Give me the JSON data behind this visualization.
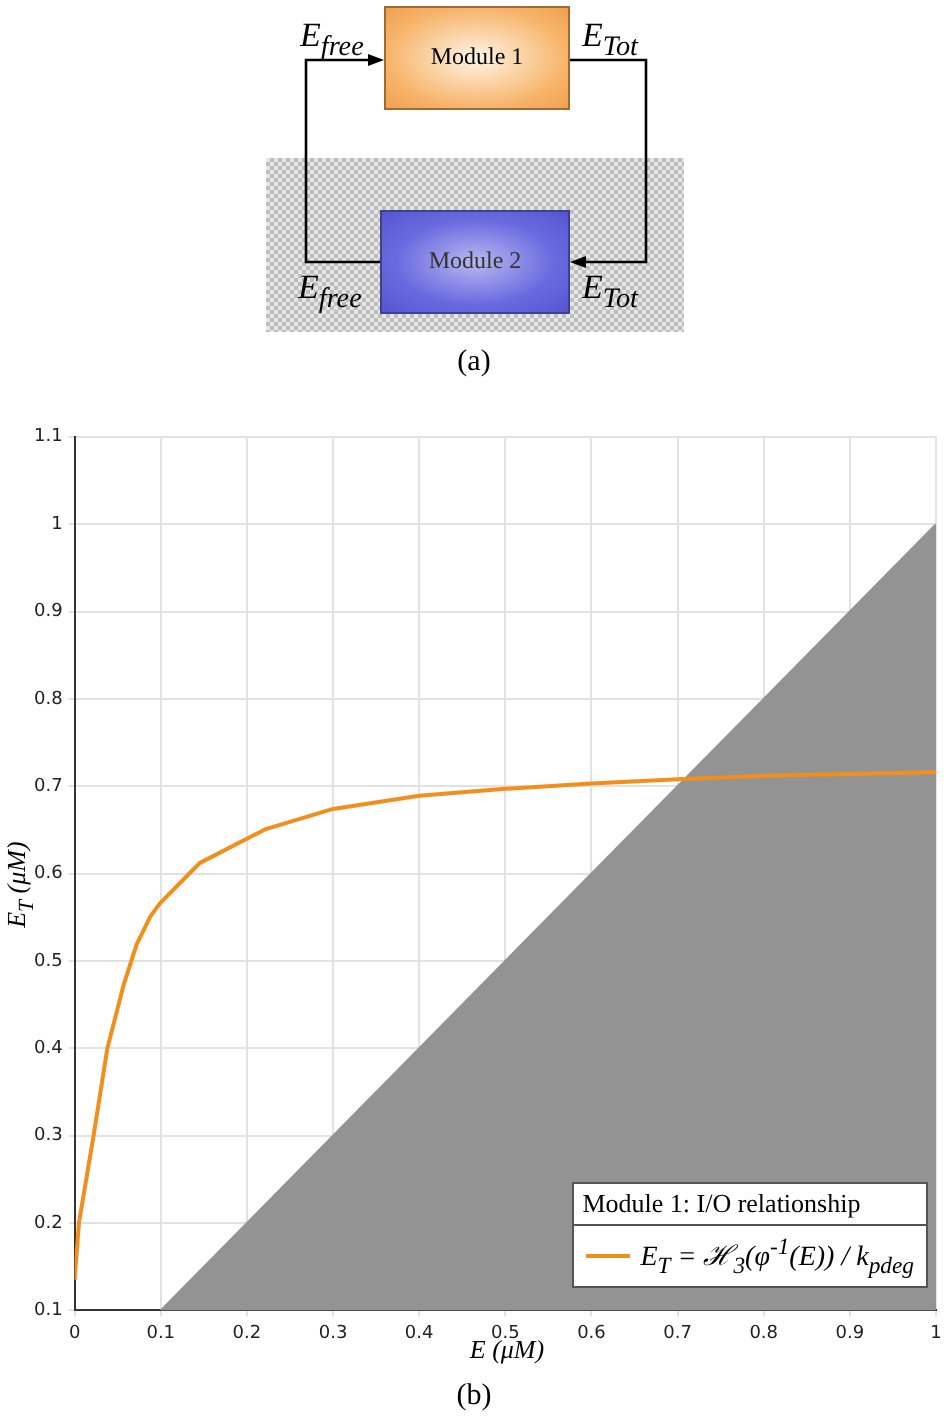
{
  "chart_data": [
    {
      "type": "other",
      "annotations": [
        "E$_{free}$",
        "Module 1",
        "E$_{Tot}$",
        "Module 2",
        "E$_{free}$",
        "E$_{Tot}$",
        "(a)"
      ]
    },
    {
      "type": "line",
      "x": [
        0,
        0.005,
        0.022,
        0.038,
        0.057,
        0.072,
        0.088,
        0.099,
        0.13,
        0.145,
        0.222,
        0.3,
        0.4,
        0.5,
        0.6,
        0.7,
        0.8,
        1
      ],
      "series": [
        {
          "name": "E$_{T}$ = ℋ$_{3}$(φ$^{-1}$(E)) / k$_{pdeg}$",
          "color": "#f28e1c",
          "values": [
            0.135,
            0.2,
            0.3,
            0.4,
            0.473,
            0.519,
            0.551,
            0.566,
            0.597,
            0.612,
            0.651,
            0.674,
            0.689,
            0.697,
            0.703,
            0.708,
            0.712,
            0.716
          ]
        },
        {
          "type": "area",
          "x": [
            0.1,
            1
          ],
          "color": "#939393",
          "values": [
            0.1,
            1
          ]
        }
      ],
      "xlim": [
        0,
        1
      ],
      "ylim": [
        0.1,
        1.1
      ],
      "xticks": [
        0,
        0.1,
        0.2,
        0.3,
        0.4,
        0.5,
        0.6,
        0.7,
        0.8,
        0.9,
        1
      ],
      "yticks": [
        0.1,
        0.2,
        0.3,
        0.4,
        0.5,
        0.6,
        0.7,
        0.8,
        0.9,
        1,
        1.1
      ],
      "xlabel": "E (μM)",
      "ylabel": "E$_{T}$ (μM)",
      "legend": "bottom right",
      "legend_title": "Module 1: I/O relationship",
      "grid": true,
      "annotations": [
        "(b)"
      ]
    }
  ]
}
